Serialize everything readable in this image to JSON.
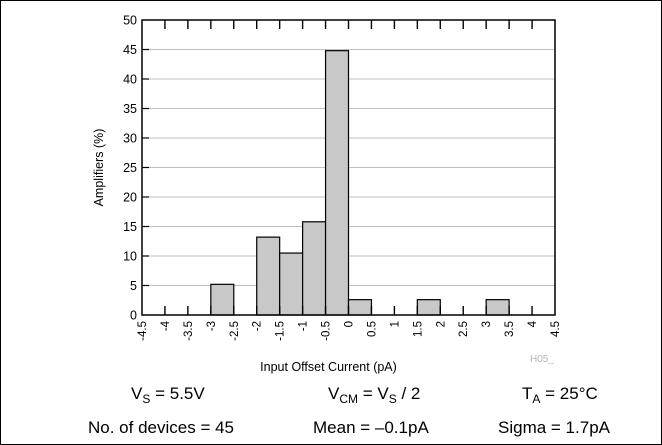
{
  "chart_data": {
    "type": "bar",
    "xlabel": "Input Offset Current (pA)",
    "ylabel": "Amplifiers (%)",
    "ylim": [
      0,
      50
    ],
    "yticks": [
      0,
      5,
      10,
      15,
      20,
      25,
      30,
      35,
      40,
      45,
      50
    ],
    "xtick_labels": [
      "-4.5",
      "-4",
      "-3.5",
      "-3",
      "-2.5",
      "-2",
      "-1.5",
      "-1",
      "-0.5",
      "0",
      "0.5",
      "1",
      "1.5",
      "2",
      "2.5",
      "3",
      "3.5",
      "4",
      "4.5"
    ],
    "bins": [
      {
        "from": -4.5,
        "to": -4,
        "value": 0
      },
      {
        "from": -4,
        "to": -3.5,
        "value": 0
      },
      {
        "from": -3.5,
        "to": -3,
        "value": 0
      },
      {
        "from": -3,
        "to": -2.5,
        "value": 5.2
      },
      {
        "from": -2.5,
        "to": -2,
        "value": 0
      },
      {
        "from": -2,
        "to": -1.5,
        "value": 13.2
      },
      {
        "from": -1.5,
        "to": -1,
        "value": 10.5
      },
      {
        "from": -1,
        "to": -0.5,
        "value": 15.8
      },
      {
        "from": -0.5,
        "to": 0,
        "value": 44.8
      },
      {
        "from": 0,
        "to": 0.5,
        "value": 2.6
      },
      {
        "from": 0.5,
        "to": 1,
        "value": 0
      },
      {
        "from": 1,
        "to": 1.5,
        "value": 0
      },
      {
        "from": 1.5,
        "to": 2,
        "value": 2.6
      },
      {
        "from": 2,
        "to": 2.5,
        "value": 0
      },
      {
        "from": 2.5,
        "to": 3,
        "value": 0
      },
      {
        "from": 3,
        "to": 3.5,
        "value": 2.6
      },
      {
        "from": 3.5,
        "to": 4,
        "value": 0
      },
      {
        "from": 4,
        "to": 4.5,
        "value": 0
      }
    ],
    "grid": true,
    "watermark": "H05_",
    "bar_color": "#c8c8c8"
  },
  "conditions": {
    "vs_label": "V",
    "vs_sub": "S",
    "vs_value": " = 5.5V",
    "vcm_label": "V",
    "vcm_sub": "CM",
    "vcm_mid": " = V",
    "vcm_sub2": "S",
    "vcm_value": " / 2",
    "ta_label": "T",
    "ta_sub": "A",
    "ta_value": " = 25°C",
    "devices": "No. of devices = 45",
    "mean": "Mean = –0.1pA",
    "sigma": "Sigma = 1.7pA"
  }
}
